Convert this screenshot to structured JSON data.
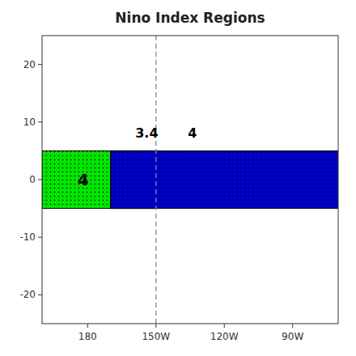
{
  "chart_data": {
    "type": "region_map",
    "title": "Nino Index Regions",
    "xlim": [
      160,
      290
    ],
    "xticks": [
      180,
      {
        "value": 210,
        "label": "150W"
      },
      {
        "value": 240,
        "label": "120W"
      },
      {
        "value": 270,
        "label": "90W"
      }
    ],
    "ylim": [
      -25,
      25
    ],
    "yticks": [
      -20,
      -10,
      0,
      10,
      20
    ],
    "regions": [
      {
        "lon_min": 160,
        "lon_max": 210,
        "lat_min": -5,
        "lat_max": 5,
        "color": "#00e600"
      },
      {
        "lon_min": 190,
        "lon_max": 290,
        "lat_min": -5,
        "lat_max": 5,
        "color": "#0000cc"
      }
    ],
    "annotations": [
      {
        "text": "4",
        "x": 178,
        "y": 0
      },
      {
        "text": "3.4",
        "x": 211,
        "y": 7
      },
      {
        "text": "4",
        "x": 224,
        "y": 7
      }
    ],
    "vline": {
      "x": 210,
      "color": "#888888",
      "line_style": "dashed"
    }
  }
}
